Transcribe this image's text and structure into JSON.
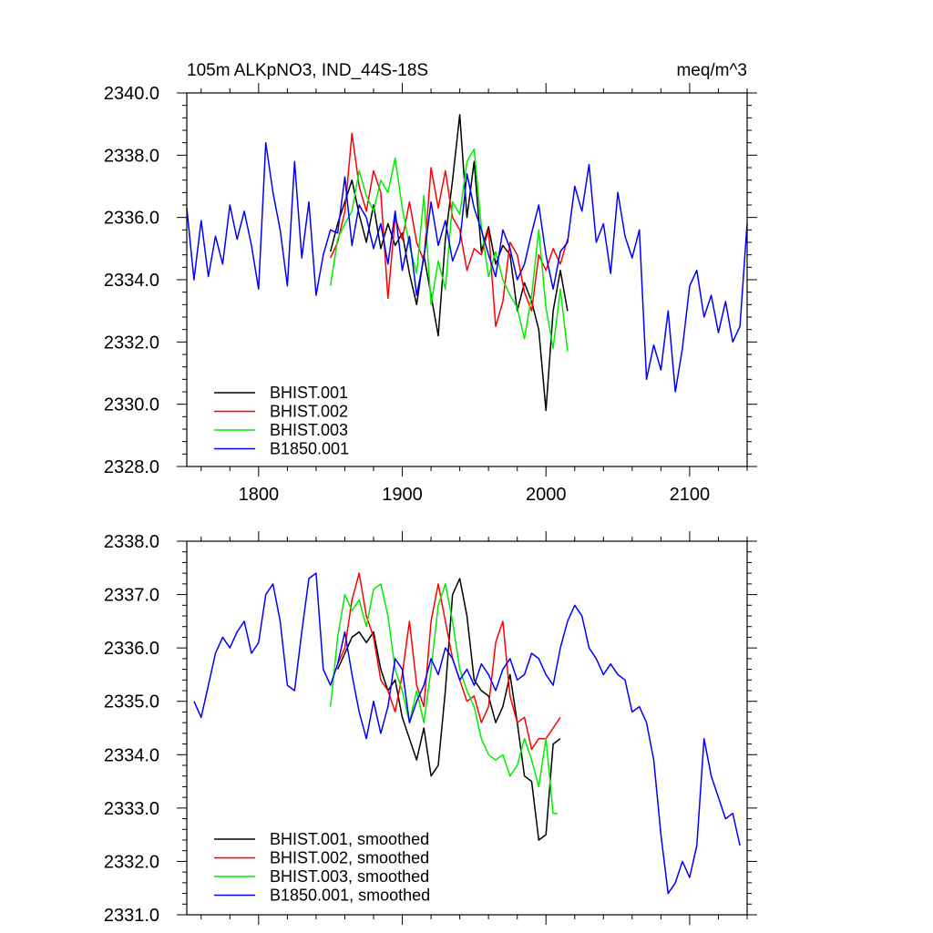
{
  "chart_data": [
    {
      "type": "line",
      "title": "105m ALKpNO3, IND_44S-18S",
      "units": "meq/m^3",
      "xlim": [
        1750,
        2140
      ],
      "ylim": [
        2328.0,
        2340.0
      ],
      "x_ticks": [
        1800,
        1900,
        2000,
        2100
      ],
      "x_tick_labels": [
        "1800",
        "1900",
        "2000",
        "2100"
      ],
      "y_ticks": [
        2328.0,
        2330.0,
        2332.0,
        2334.0,
        2336.0,
        2338.0,
        2340.0
      ],
      "y_tick_labels": [
        "2328.0",
        "2330.0",
        "2332.0",
        "2334.0",
        "2336.0",
        "2338.0",
        "2340.0"
      ],
      "grid": false,
      "legend_position": "bottom-left",
      "series": [
        {
          "name": "BHIST.001",
          "color": "#000000",
          "x": [
            1850,
            1855,
            1860,
            1865,
            1870,
            1875,
            1880,
            1885,
            1890,
            1895,
            1900,
            1905,
            1910,
            1915,
            1920,
            1925,
            1930,
            1935,
            1940,
            1945,
            1950,
            1955,
            1960,
            1965,
            1970,
            1975,
            1980,
            1985,
            1990,
            1995,
            2000,
            2005,
            2010,
            2015
          ],
          "values": [
            2334.9,
            2335.8,
            2336.5,
            2337.2,
            2336.1,
            2335.2,
            2336.4,
            2335.0,
            2335.8,
            2335.1,
            2335.5,
            2334.2,
            2333.2,
            2334.8,
            2333.5,
            2332.2,
            2335.3,
            2337.2,
            2339.3,
            2336.0,
            2337.8,
            2334.9,
            2335.7,
            2334.5,
            2335.1,
            2334.8,
            2333.0,
            2333.9,
            2333.3,
            2332.4,
            2329.8,
            2333.0,
            2334.3,
            2333.0
          ]
        },
        {
          "name": "BHIST.002",
          "color": "#ff0000",
          "x": [
            1850,
            1855,
            1860,
            1865,
            1870,
            1875,
            1880,
            1885,
            1890,
            1895,
            1900,
            1905,
            1910,
            1915,
            1920,
            1925,
            1930,
            1935,
            1940,
            1945,
            1950,
            1955,
            1960,
            1965,
            1970,
            1975,
            1980,
            1985,
            1990,
            1995,
            2000,
            2005,
            2010,
            2015
          ],
          "values": [
            2334.7,
            2335.2,
            2336.2,
            2338.7,
            2337.0,
            2336.2,
            2337.5,
            2336.8,
            2333.4,
            2336.0,
            2335.3,
            2336.5,
            2335.2,
            2334.6,
            2337.6,
            2336.3,
            2337.5,
            2336.0,
            2335.6,
            2334.3,
            2335.0,
            2334.8,
            2335.6,
            2332.5,
            2333.3,
            2335.2,
            2334.8,
            2333.6,
            2333.0,
            2334.8,
            2334.3,
            2335.0,
            2334.5,
            2335.3
          ]
        },
        {
          "name": "BHIST.003",
          "color": "#00ee00",
          "x": [
            1850,
            1855,
            1860,
            1865,
            1870,
            1875,
            1880,
            1885,
            1890,
            1895,
            1900,
            1905,
            1910,
            1915,
            1920,
            1925,
            1930,
            1935,
            1940,
            1945,
            1950,
            1955,
            1960,
            1965,
            1970,
            1975,
            1980,
            1985,
            1990,
            1995,
            2000,
            2005,
            2010,
            2015
          ],
          "values": [
            2333.8,
            2335.3,
            2335.8,
            2336.2,
            2337.5,
            2336.7,
            2336.2,
            2337.2,
            2336.8,
            2337.9,
            2336.3,
            2335.1,
            2334.2,
            2336.7,
            2333.2,
            2334.6,
            2333.7,
            2336.5,
            2336.1,
            2337.8,
            2338.2,
            2335.7,
            2334.1,
            2334.9,
            2334.0,
            2333.5,
            2333.1,
            2332.1,
            2333.5,
            2335.6,
            2333.1,
            2331.8,
            2333.7,
            2331.7
          ]
        },
        {
          "name": "B1850.001",
          "color": "#0000ff",
          "x": [
            1750,
            1755,
            1760,
            1765,
            1770,
            1775,
            1780,
            1785,
            1790,
            1795,
            1800,
            1805,
            1810,
            1815,
            1820,
            1825,
            1830,
            1835,
            1840,
            1845,
            1850,
            1855,
            1860,
            1865,
            1870,
            1875,
            1880,
            1885,
            1890,
            1895,
            1900,
            1905,
            1910,
            1915,
            1920,
            1925,
            1930,
            1935,
            1940,
            1945,
            1950,
            1955,
            1960,
            1965,
            1970,
            1975,
            1980,
            1985,
            1990,
            1995,
            2000,
            2005,
            2010,
            2015,
            2020,
            2025,
            2030,
            2035,
            2040,
            2045,
            2050,
            2055,
            2060,
            2065,
            2070,
            2075,
            2080,
            2085,
            2090,
            2095,
            2100,
            2105,
            2110,
            2115,
            2120,
            2125,
            2130,
            2135,
            2140
          ],
          "values": [
            2336.3,
            2334.0,
            2335.9,
            2334.1,
            2335.4,
            2334.5,
            2336.4,
            2335.3,
            2336.2,
            2335.1,
            2333.7,
            2338.4,
            2336.8,
            2335.6,
            2333.8,
            2337.8,
            2334.7,
            2336.5,
            2333.5,
            2334.8,
            2335.6,
            2335.5,
            2337.3,
            2335.1,
            2336.4,
            2336.0,
            2335.0,
            2335.8,
            2334.5,
            2336.2,
            2334.3,
            2335.4,
            2333.5,
            2334.7,
            2336.5,
            2335.1,
            2335.9,
            2334.6,
            2335.2,
            2337.4,
            2336.3,
            2335.6,
            2334.8,
            2334.1,
            2335.6,
            2335.0,
            2334.0,
            2334.5,
            2335.5,
            2336.4,
            2334.8,
            2333.7,
            2334.9,
            2335.2,
            2337.0,
            2336.2,
            2337.7,
            2335.2,
            2335.8,
            2334.2,
            2336.8,
            2335.4,
            2334.7,
            2335.6,
            2330.8,
            2331.9,
            2331.1,
            2333.0,
            2330.4,
            2331.8,
            2333.8,
            2334.3,
            2332.8,
            2333.5,
            2332.3,
            2333.3,
            2332.0,
            2332.5,
            2335.8
          ]
        }
      ]
    },
    {
      "type": "line",
      "title": "",
      "xlim": [
        1750,
        2140
      ],
      "ylim": [
        2331.0,
        2338.0
      ],
      "x_ticks": [
        1800,
        1900,
        2000,
        2100
      ],
      "x_tick_labels": [],
      "y_ticks": [
        2331.0,
        2332.0,
        2333.0,
        2334.0,
        2335.0,
        2336.0,
        2337.0,
        2338.0
      ],
      "y_tick_labels": [
        "2331.0",
        "2332.0",
        "2333.0",
        "2334.0",
        "2335.0",
        "2336.0",
        "2337.0",
        "2338.0"
      ],
      "grid": false,
      "legend_position": "bottom-left",
      "series": [
        {
          "name": "BHIST.001, smoothed",
          "color": "#000000",
          "x": [
            1855,
            1860,
            1865,
            1870,
            1875,
            1880,
            1885,
            1890,
            1895,
            1900,
            1905,
            1910,
            1915,
            1920,
            1925,
            1930,
            1935,
            1940,
            1945,
            1950,
            1955,
            1960,
            1965,
            1970,
            1975,
            1980,
            1985,
            1990,
            1995,
            2000,
            2005,
            2010
          ],
          "values": [
            2335.6,
            2335.9,
            2336.2,
            2336.3,
            2336.1,
            2336.3,
            2335.6,
            2335.2,
            2335.4,
            2334.7,
            2334.3,
            2333.9,
            2334.5,
            2333.6,
            2333.8,
            2335.2,
            2337.0,
            2337.3,
            2336.6,
            2335.4,
            2335.2,
            2335.1,
            2334.6,
            2334.9,
            2335.5,
            2334.6,
            2333.6,
            2333.5,
            2332.4,
            2332.5,
            2334.2,
            2334.3
          ]
        },
        {
          "name": "BHIST.002, smoothed",
          "color": "#ff0000",
          "x": [
            1855,
            1860,
            1865,
            1870,
            1875,
            1880,
            1885,
            1890,
            1895,
            1900,
            1905,
            1910,
            1915,
            1920,
            1925,
            1930,
            1935,
            1940,
            1945,
            1950,
            1955,
            1960,
            1965,
            1970,
            1975,
            1980,
            1985,
            1990,
            1995,
            2000,
            2005,
            2010
          ],
          "values": [
            2335.7,
            2336.0,
            2336.9,
            2337.4,
            2336.6,
            2336.2,
            2335.4,
            2335.2,
            2334.8,
            2335.5,
            2336.5,
            2335.3,
            2334.9,
            2336.5,
            2337.2,
            2336.5,
            2335.8,
            2335.4,
            2335.0,
            2335.1,
            2334.6,
            2334.9,
            2336.1,
            2336.5,
            2335.1,
            2334.6,
            2334.7,
            2334.1,
            2334.3,
            2334.3,
            2334.5,
            2334.7
          ]
        },
        {
          "name": "BHIST.003, smoothed",
          "color": "#00ee00",
          "x": [
            1850,
            1855,
            1860,
            1865,
            1870,
            1875,
            1880,
            1885,
            1890,
            1895,
            1900,
            1905,
            1910,
            1915,
            1920,
            1925,
            1930,
            1935,
            1940,
            1945,
            1950,
            1955,
            1960,
            1965,
            1970,
            1975,
            1980,
            1985,
            1990,
            1995,
            2000,
            2005,
            2008
          ],
          "values": [
            2334.9,
            2336.2,
            2337.0,
            2336.7,
            2336.9,
            2336.4,
            2337.1,
            2337.2,
            2336.6,
            2335.6,
            2335.2,
            2334.6,
            2335.2,
            2334.6,
            2335.6,
            2336.8,
            2337.2,
            2336.5,
            2335.6,
            2335.2,
            2334.9,
            2334.3,
            2334.0,
            2333.9,
            2334.0,
            2333.6,
            2333.8,
            2334.3,
            2333.9,
            2333.4,
            2334.3,
            2332.9,
            2332.9
          ]
        },
        {
          "name": "B1850.001, smoothed",
          "color": "#0000ff",
          "x": [
            1755,
            1760,
            1765,
            1770,
            1775,
            1780,
            1785,
            1790,
            1795,
            1800,
            1805,
            1810,
            1815,
            1820,
            1825,
            1830,
            1835,
            1840,
            1845,
            1850,
            1855,
            1860,
            1865,
            1870,
            1875,
            1880,
            1885,
            1890,
            1895,
            1900,
            1905,
            1910,
            1915,
            1920,
            1925,
            1930,
            1935,
            1940,
            1945,
            1950,
            1955,
            1960,
            1965,
            1970,
            1975,
            1980,
            1985,
            1990,
            1995,
            2000,
            2005,
            2010,
            2015,
            2020,
            2025,
            2030,
            2035,
            2040,
            2045,
            2050,
            2055,
            2060,
            2065,
            2070,
            2075,
            2080,
            2085,
            2090,
            2095,
            2100,
            2105,
            2110,
            2115,
            2120,
            2125,
            2130,
            2135
          ],
          "values": [
            2335.0,
            2334.7,
            2335.3,
            2335.9,
            2336.2,
            2336.0,
            2336.3,
            2336.5,
            2335.9,
            2336.1,
            2337.0,
            2337.2,
            2336.5,
            2335.3,
            2335.2,
            2336.3,
            2337.3,
            2337.4,
            2335.6,
            2335.3,
            2335.7,
            2336.3,
            2335.5,
            2334.8,
            2334.3,
            2335.0,
            2334.4,
            2334.9,
            2335.8,
            2335.6,
            2334.6,
            2335.0,
            2335.3,
            2335.8,
            2335.5,
            2336.0,
            2335.8,
            2335.4,
            2335.6,
            2335.3,
            2335.7,
            2335.5,
            2335.2,
            2335.6,
            2335.8,
            2335.4,
            2335.5,
            2335.9,
            2335.8,
            2335.5,
            2335.3,
            2336.0,
            2336.5,
            2336.8,
            2336.6,
            2336.0,
            2335.8,
            2335.5,
            2335.7,
            2335.5,
            2335.4,
            2334.8,
            2334.9,
            2334.6,
            2333.9,
            2332.5,
            2331.4,
            2331.6,
            2332.0,
            2331.7,
            2332.3,
            2334.3,
            2333.6,
            2333.2,
            2332.8,
            2332.9,
            2332.3
          ]
        }
      ]
    }
  ]
}
